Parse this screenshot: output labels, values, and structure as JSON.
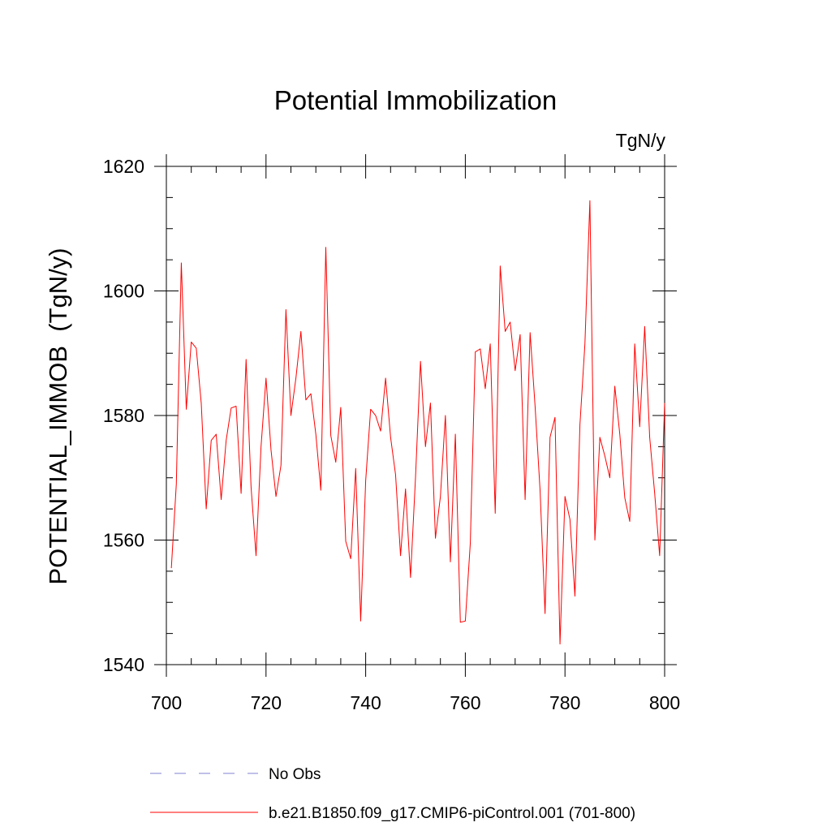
{
  "chart_data": {
    "type": "line",
    "title": "Potential Immobilization",
    "units": "TgN/y",
    "xlabel": "",
    "ylabel": "POTENTIAL_IMMOB  (TgN/y)",
    "xlim": [
      700,
      800
    ],
    "ylim": [
      1540,
      1620
    ],
    "x_ticks": [
      700,
      720,
      740,
      760,
      780,
      800
    ],
    "x_tick_labels": [
      "700",
      "720",
      "740",
      "760",
      "780",
      "800"
    ],
    "y_ticks": [
      1540,
      1560,
      1580,
      1600,
      1620
    ],
    "y_tick_labels": [
      "1540",
      "1560",
      "1580",
      "1600",
      "1620"
    ],
    "grid": false,
    "legend_position": "bottom",
    "series": [
      {
        "name": "No Obs",
        "color": "#8080d0",
        "style": "dashed",
        "x": [],
        "values": []
      },
      {
        "name": "b.e21.B1850.f09_g17.CMIP6-piControl.001 (701-800)",
        "color": "#ff0000",
        "style": "solid",
        "x": [
          701,
          702,
          703,
          704,
          705,
          706,
          707,
          708,
          709,
          710,
          711,
          712,
          713,
          714,
          715,
          716,
          717,
          718,
          719,
          720,
          721,
          722,
          723,
          724,
          725,
          726,
          727,
          728,
          729,
          730,
          731,
          732,
          733,
          734,
          735,
          736,
          737,
          738,
          739,
          740,
          741,
          742,
          743,
          744,
          745,
          746,
          747,
          748,
          749,
          750,
          751,
          752,
          753,
          754,
          755,
          756,
          757,
          758,
          759,
          760,
          761,
          762,
          763,
          764,
          765,
          766,
          767,
          768,
          769,
          770,
          771,
          772,
          773,
          774,
          775,
          776,
          777,
          778,
          779,
          780,
          781,
          782,
          783,
          784,
          785,
          786,
          787,
          788,
          789,
          790,
          791,
          792,
          793,
          794,
          795,
          796,
          797,
          798,
          799,
          800
        ],
        "values": [
          1555.5,
          1569,
          1604.5,
          1581,
          1591.8,
          1590.8,
          1582,
          1565,
          1576,
          1577,
          1566.5,
          1576,
          1581.2,
          1581.5,
          1567.5,
          1589,
          1568.5,
          1557.5,
          1575,
          1586,
          1574.5,
          1567,
          1572,
          1597,
          1580,
          1586,
          1593.5,
          1582.5,
          1583.5,
          1577,
          1568,
          1607,
          1576.8,
          1572.5,
          1581.3,
          1559.8,
          1557,
          1571.5,
          1547,
          1569.5,
          1581,
          1580,
          1577.5,
          1586,
          1576.5,
          1570.5,
          1557.5,
          1568.2,
          1554,
          1570,
          1588.7,
          1575,
          1582,
          1560.3,
          1567,
          1580,
          1556.5,
          1577,
          1546.8,
          1547,
          1559.5,
          1590.2,
          1590.7,
          1584.3,
          1591.5,
          1564.3,
          1604,
          1593.5,
          1595,
          1587.2,
          1593,
          1566.5,
          1593.3,
          1581.5,
          1568,
          1548.2,
          1576.5,
          1579.7,
          1543.3,
          1567,
          1563.3,
          1551,
          1578.5,
          1591.5,
          1614.5,
          1560,
          1576.5,
          1573.5,
          1570,
          1584.7,
          1577,
          1566.8,
          1563,
          1591.5,
          1578.2,
          1594.3,
          1576.5,
          1567.5,
          1557.5,
          1582
        ]
      }
    ]
  }
}
